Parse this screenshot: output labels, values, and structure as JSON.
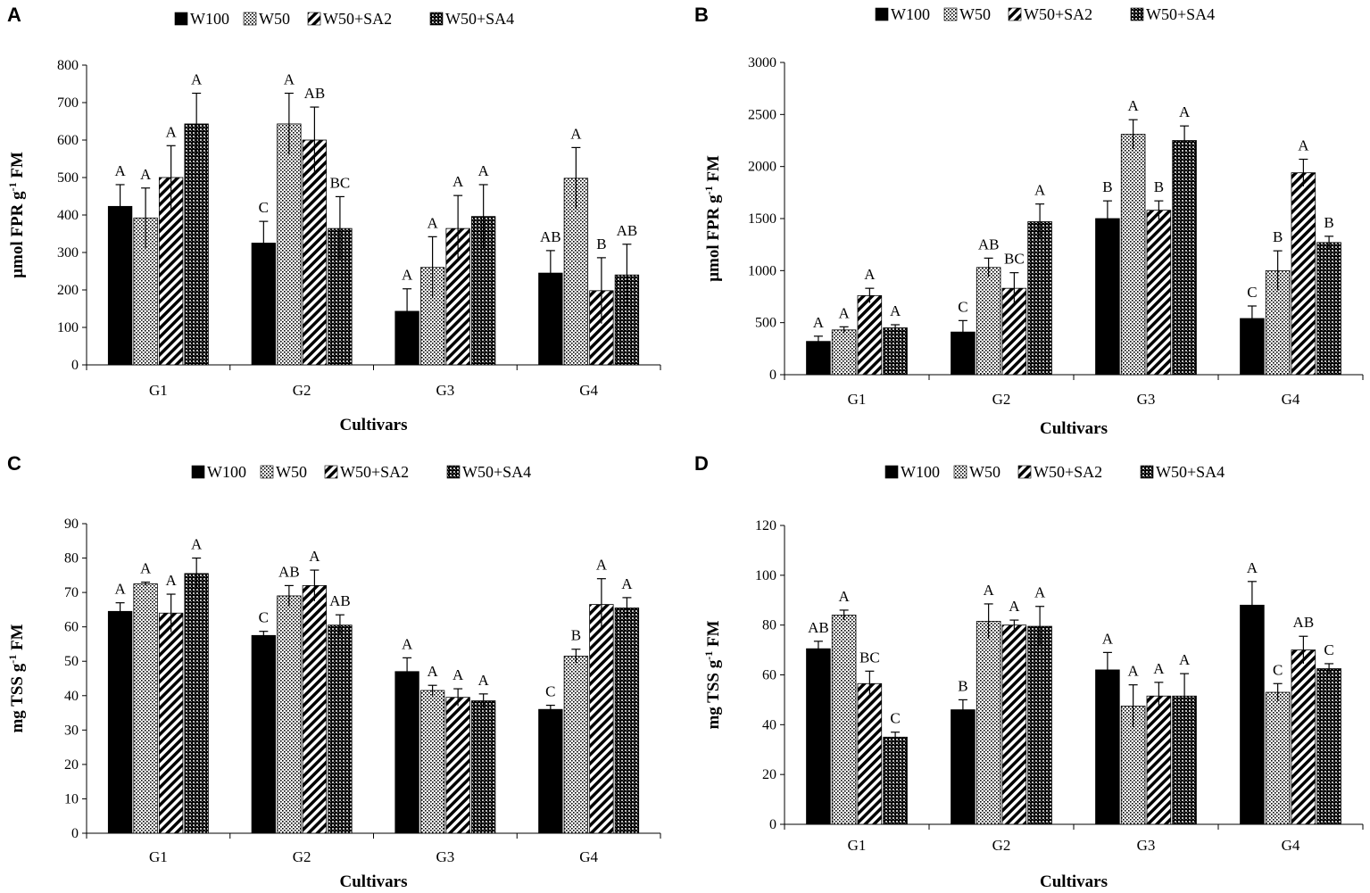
{
  "series_names": [
    "W100",
    "W50",
    "W50+SA2",
    "W50+SA4"
  ],
  "chart_data": [
    {
      "panel": "A",
      "type": "bar",
      "categories": [
        "G1",
        "G2",
        "G3",
        "G4"
      ],
      "xlabel": "Cultivars",
      "ylabel": "µmol FPR g",
      "ylabel_sup": "-1",
      "ylabel_end": " FM",
      "ylim": [
        0,
        800
      ],
      "yticks": [
        0,
        100,
        200,
        300,
        400,
        500,
        600,
        700,
        800
      ],
      "legend_position": "top",
      "series": [
        {
          "name": "W100",
          "values": [
            423,
            325,
            143,
            245
          ],
          "errors": [
            58,
            58,
            60,
            60
          ],
          "letters": [
            "A",
            "C",
            "A",
            "AB"
          ]
        },
        {
          "name": "W50",
          "values": [
            392,
            643,
            260,
            498
          ],
          "errors": [
            80,
            82,
            82,
            82
          ],
          "letters": [
            "A",
            "A",
            "A",
            "A"
          ]
        },
        {
          "name": "W50+SA2",
          "values": [
            500,
            600,
            364,
            198
          ],
          "errors": [
            85,
            88,
            88,
            88
          ],
          "letters": [
            "A",
            "AB",
            "A",
            "B"
          ]
        },
        {
          "name": "W50+SA4",
          "values": [
            643,
            364,
            396,
            240
          ],
          "errors": [
            82,
            85,
            85,
            82
          ],
          "letters": [
            "A",
            "BC",
            "A",
            "AB"
          ]
        }
      ]
    },
    {
      "panel": "B",
      "type": "bar",
      "categories": [
        "G1",
        "G2",
        "G3",
        "G4"
      ],
      "xlabel": "Cultivars",
      "ylabel": "µmol FPR g",
      "ylabel_sup": "-1",
      "ylabel_end": " FM",
      "ylim": [
        0,
        3000
      ],
      "yticks": [
        0,
        500,
        1000,
        1500,
        2000,
        2500,
        3000
      ],
      "legend_position": "top",
      "series": [
        {
          "name": "W100",
          "values": [
            320,
            410,
            1500,
            540
          ],
          "errors": [
            50,
            110,
            170,
            120
          ],
          "letters": [
            "A",
            "C",
            "B",
            "C"
          ]
        },
        {
          "name": "W50",
          "values": [
            430,
            1030,
            2310,
            1000
          ],
          "errors": [
            30,
            90,
            140,
            190
          ],
          "letters": [
            "A",
            "AB",
            "A",
            "B"
          ]
        },
        {
          "name": "W50+SA2",
          "values": [
            760,
            830,
            1580,
            1940
          ],
          "errors": [
            70,
            150,
            90,
            130
          ],
          "letters": [
            "A",
            "BC",
            "B",
            "A"
          ]
        },
        {
          "name": "W50+SA4",
          "values": [
            450,
            1470,
            2250,
            1270
          ],
          "errors": [
            30,
            170,
            140,
            60
          ],
          "letters": [
            "A",
            "A",
            "A",
            "B"
          ]
        }
      ]
    },
    {
      "panel": "C",
      "type": "bar",
      "categories": [
        "G1",
        "G2",
        "G3",
        "G4"
      ],
      "xlabel": "Cultivars",
      "ylabel": "mg TSS g",
      "ylabel_sup": "-1",
      "ylabel_end": " FM",
      "ylim": [
        0,
        90
      ],
      "yticks": [
        0,
        10,
        20,
        30,
        40,
        50,
        60,
        70,
        80,
        90
      ],
      "legend_position": "top",
      "series": [
        {
          "name": "W100",
          "values": [
            64.5,
            57.5,
            47,
            36
          ],
          "errors": [
            2.5,
            1.2,
            4.0,
            1.2
          ],
          "letters": [
            "A",
            "C",
            "A",
            "C"
          ]
        },
        {
          "name": "W50",
          "values": [
            72.5,
            69,
            41.5,
            51.5
          ],
          "errors": [
            0.5,
            3,
            1.5,
            2
          ],
          "letters": [
            "A",
            "AB",
            "A",
            "B"
          ]
        },
        {
          "name": "W50+SA2",
          "values": [
            64,
            72,
            39.5,
            66.5
          ],
          "errors": [
            5.5,
            4.5,
            2.5,
            7.5
          ],
          "letters": [
            "A",
            "A",
            "A",
            "A"
          ]
        },
        {
          "name": "W50+SA4",
          "values": [
            75.5,
            60.5,
            38.5,
            65.5
          ],
          "errors": [
            4.5,
            3,
            2,
            3
          ],
          "letters": [
            "A",
            "AB",
            "A",
            "A"
          ]
        }
      ]
    },
    {
      "panel": "D",
      "type": "bar",
      "categories": [
        "G1",
        "G2",
        "G3",
        "G4"
      ],
      "xlabel": "Cultivars",
      "ylabel": "mg TSS g",
      "ylabel_sup": "-1",
      "ylabel_end": " FM",
      "ylim": [
        0,
        120
      ],
      "yticks": [
        0,
        20,
        40,
        60,
        80,
        100,
        120
      ],
      "legend_position": "top",
      "series": [
        {
          "name": "W100",
          "values": [
            70.5,
            46,
            62,
            88
          ],
          "errors": [
            3,
            4,
            7,
            9.5
          ],
          "letters": [
            "AB",
            "B",
            "A",
            "A"
          ]
        },
        {
          "name": "W50",
          "values": [
            84,
            81.5,
            47.5,
            53
          ],
          "errors": [
            2,
            7,
            8.5,
            3.5
          ],
          "letters": [
            "A",
            "A",
            "A",
            "C"
          ]
        },
        {
          "name": "W50+SA2",
          "values": [
            56.5,
            80,
            51.5,
            70
          ],
          "errors": [
            5,
            2,
            5.5,
            5.5
          ],
          "letters": [
            "BC",
            "A",
            "A",
            "AB"
          ]
        },
        {
          "name": "W50+SA4",
          "values": [
            35,
            79.5,
            51.5,
            62.5
          ],
          "errors": [
            2,
            8,
            9,
            2
          ],
          "letters": [
            "C",
            "A",
            "A",
            "C"
          ]
        }
      ]
    }
  ]
}
